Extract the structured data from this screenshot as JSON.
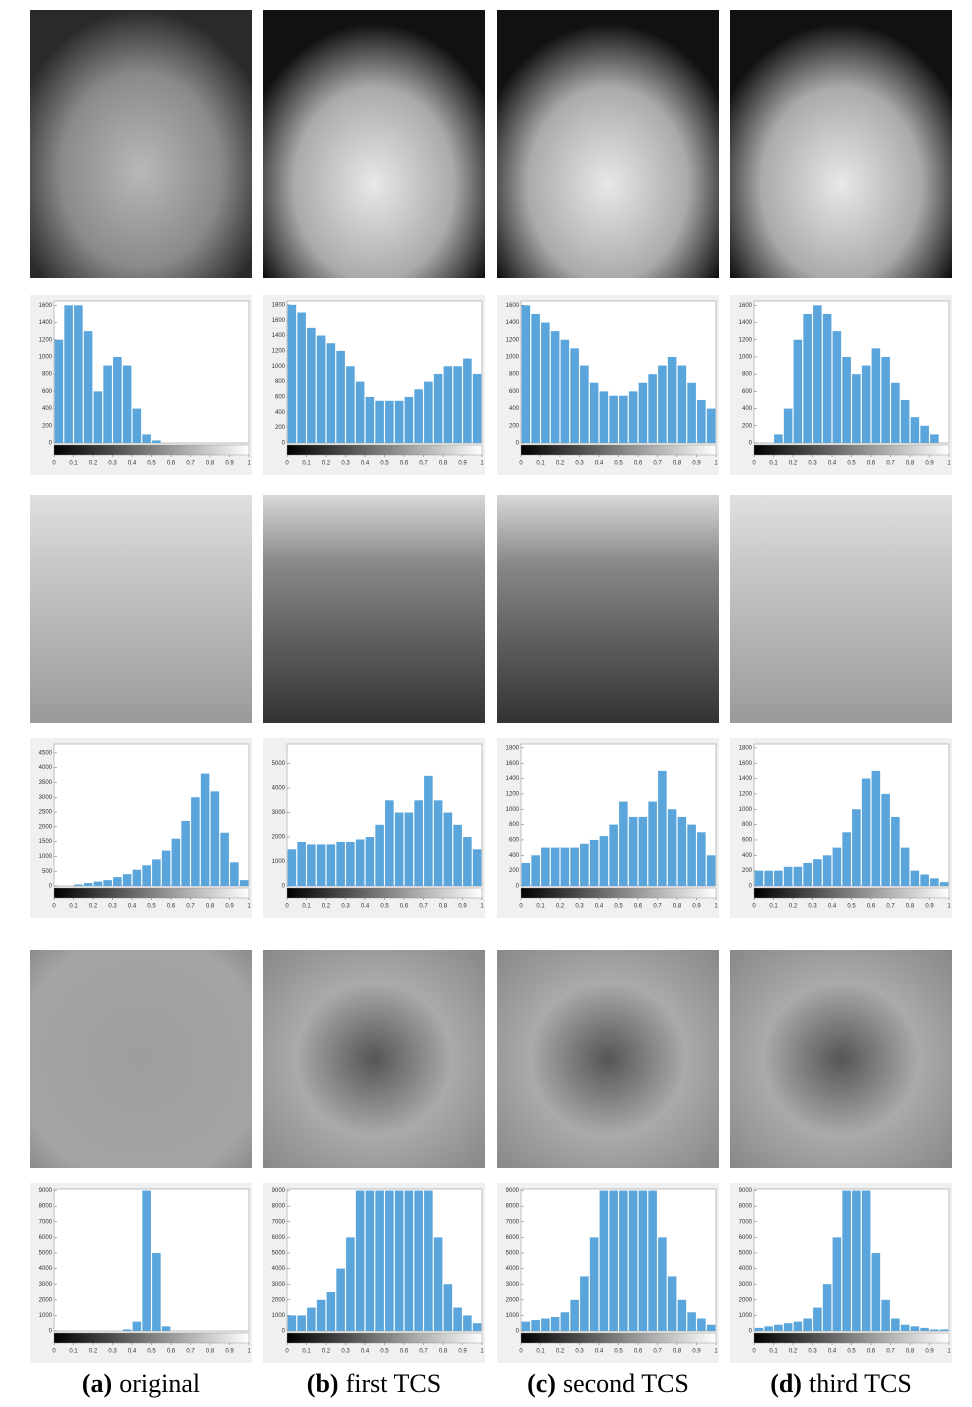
{
  "captions": [
    {
      "label": "(a)",
      "text": "original"
    },
    {
      "label": "(b)",
      "text": "first TCS"
    },
    {
      "label": "(c)",
      "text": "second TCS"
    },
    {
      "label": "(d)",
      "text": "third TCS"
    }
  ],
  "chart_data": [
    {
      "type": "histogram",
      "color": "#5aa6dc",
      "bins": [
        0,
        0.05,
        0.1,
        0.15,
        0.2,
        0.25,
        0.3,
        0.35,
        0.4,
        0.45,
        0.5,
        0.55,
        0.6,
        0.65,
        0.7,
        0.75,
        0.8,
        0.85,
        0.9,
        0.95,
        1
      ],
      "values": [
        1200,
        1600,
        1600,
        1300,
        600,
        900,
        1000,
        900,
        400,
        100,
        30,
        0,
        0,
        0,
        0,
        0,
        0,
        0,
        0,
        0
      ],
      "xlim": [
        0,
        1
      ],
      "xticks": [
        0,
        0.1,
        0.2,
        0.3,
        0.4,
        0.5,
        0.6,
        0.7,
        0.8,
        0.9,
        1
      ],
      "ylim": [
        0,
        1650
      ],
      "yticks": [
        0,
        200,
        400,
        600,
        800,
        1000,
        1200,
        1400,
        1600
      ]
    },
    {
      "type": "histogram",
      "color": "#5aa6dc",
      "bins": [
        0,
        0.05,
        0.1,
        0.15,
        0.2,
        0.25,
        0.3,
        0.35,
        0.4,
        0.45,
        0.5,
        0.55,
        0.6,
        0.65,
        0.7,
        0.75,
        0.8,
        0.85,
        0.9,
        0.95,
        1
      ],
      "values": [
        1800,
        1700,
        1500,
        1400,
        1300,
        1200,
        1000,
        800,
        600,
        550,
        550,
        550,
        600,
        700,
        800,
        900,
        1000,
        1000,
        1100,
        900
      ],
      "xlim": [
        0,
        1
      ],
      "xticks": [
        0,
        0.1,
        0.2,
        0.3,
        0.4,
        0.5,
        0.6,
        0.7,
        0.8,
        0.9,
        1
      ],
      "ylim": [
        0,
        1850
      ],
      "yticks": [
        0,
        200,
        400,
        600,
        800,
        1000,
        1200,
        1400,
        1600,
        1800
      ]
    },
    {
      "type": "histogram",
      "color": "#5aa6dc",
      "bins": [
        0,
        0.05,
        0.1,
        0.15,
        0.2,
        0.25,
        0.3,
        0.35,
        0.4,
        0.45,
        0.5,
        0.55,
        0.6,
        0.65,
        0.7,
        0.75,
        0.8,
        0.85,
        0.9,
        0.95,
        1
      ],
      "values": [
        1600,
        1500,
        1400,
        1300,
        1200,
        1100,
        900,
        700,
        600,
        550,
        550,
        600,
        700,
        800,
        900,
        1000,
        900,
        700,
        500,
        400
      ],
      "xlim": [
        0,
        1
      ],
      "xticks": [
        0,
        0.1,
        0.2,
        0.3,
        0.4,
        0.5,
        0.6,
        0.7,
        0.8,
        0.9,
        1
      ],
      "ylim": [
        0,
        1650
      ],
      "yticks": [
        0,
        200,
        400,
        600,
        800,
        1000,
        1200,
        1400,
        1600
      ]
    },
    {
      "type": "histogram",
      "color": "#5aa6dc",
      "bins": [
        0,
        0.05,
        0.1,
        0.15,
        0.2,
        0.25,
        0.3,
        0.35,
        0.4,
        0.45,
        0.5,
        0.55,
        0.6,
        0.65,
        0.7,
        0.75,
        0.8,
        0.85,
        0.9,
        0.95,
        1
      ],
      "values": [
        0,
        0,
        100,
        400,
        1200,
        1500,
        1600,
        1500,
        1300,
        1000,
        800,
        900,
        1100,
        1000,
        700,
        500,
        300,
        200,
        100,
        0
      ],
      "xlim": [
        0,
        1
      ],
      "xticks": [
        0,
        0.1,
        0.2,
        0.3,
        0.4,
        0.5,
        0.6,
        0.7,
        0.8,
        0.9,
        1
      ],
      "ylim": [
        0,
        1650
      ],
      "yticks": [
        0,
        200,
        400,
        600,
        800,
        1000,
        1200,
        1400,
        1600
      ]
    },
    {
      "type": "histogram",
      "color": "#5aa6dc",
      "bins": [
        0,
        0.05,
        0.1,
        0.15,
        0.2,
        0.25,
        0.3,
        0.35,
        0.4,
        0.45,
        0.5,
        0.55,
        0.6,
        0.65,
        0.7,
        0.75,
        0.8,
        0.85,
        0.9,
        0.95,
        1
      ],
      "values": [
        0,
        0,
        50,
        100,
        150,
        200,
        300,
        400,
        550,
        700,
        900,
        1200,
        1600,
        2200,
        3000,
        3800,
        3200,
        1800,
        800,
        200
      ],
      "xlim": [
        0,
        1
      ],
      "xticks": [
        0,
        0.1,
        0.2,
        0.3,
        0.4,
        0.5,
        0.6,
        0.7,
        0.8,
        0.9,
        1
      ],
      "ylim": [
        0,
        4800
      ],
      "yticks": [
        0,
        500,
        1000,
        1500,
        2000,
        2500,
        3000,
        3500,
        4000,
        4500
      ]
    },
    {
      "type": "histogram",
      "color": "#5aa6dc",
      "bins": [
        0,
        0.05,
        0.1,
        0.15,
        0.2,
        0.25,
        0.3,
        0.35,
        0.4,
        0.45,
        0.5,
        0.55,
        0.6,
        0.65,
        0.7,
        0.75,
        0.8,
        0.85,
        0.9,
        0.95,
        1
      ],
      "values": [
        1500,
        1800,
        1700,
        1700,
        1700,
        1800,
        1800,
        1900,
        2000,
        2500,
        3500,
        3000,
        3000,
        3500,
        4500,
        3500,
        3000,
        2500,
        2000,
        1500
      ],
      "xlim": [
        0,
        1
      ],
      "xticks": [
        0,
        0.1,
        0.2,
        0.3,
        0.4,
        0.5,
        0.6,
        0.7,
        0.8,
        0.9,
        1
      ],
      "ylim": [
        0,
        5800
      ],
      "yticks": [
        0,
        1000,
        2000,
        3000,
        4000,
        5000
      ]
    },
    {
      "type": "histogram",
      "color": "#5aa6dc",
      "bins": [
        0,
        0.05,
        0.1,
        0.15,
        0.2,
        0.25,
        0.3,
        0.35,
        0.4,
        0.45,
        0.5,
        0.55,
        0.6,
        0.65,
        0.7,
        0.75,
        0.8,
        0.85,
        0.9,
        0.95,
        1
      ],
      "values": [
        300,
        400,
        500,
        500,
        500,
        500,
        550,
        600,
        650,
        800,
        1100,
        900,
        900,
        1100,
        1500,
        1000,
        900,
        800,
        700,
        400
      ],
      "xlim": [
        0,
        1
      ],
      "xticks": [
        0,
        0.1,
        0.2,
        0.3,
        0.4,
        0.5,
        0.6,
        0.7,
        0.8,
        0.9,
        1
      ],
      "ylim": [
        0,
        1850
      ],
      "yticks": [
        0,
        200,
        400,
        600,
        800,
        1000,
        1200,
        1400,
        1600,
        1800
      ]
    },
    {
      "type": "histogram",
      "color": "#5aa6dc",
      "bins": [
        0,
        0.05,
        0.1,
        0.15,
        0.2,
        0.25,
        0.3,
        0.35,
        0.4,
        0.45,
        0.5,
        0.55,
        0.6,
        0.65,
        0.7,
        0.75,
        0.8,
        0.85,
        0.9,
        0.95,
        1
      ],
      "values": [
        200,
        200,
        200,
        250,
        250,
        300,
        350,
        400,
        500,
        700,
        1000,
        1400,
        1500,
        1200,
        900,
        500,
        200,
        150,
        100,
        50
      ],
      "xlim": [
        0,
        1
      ],
      "xticks": [
        0,
        0.1,
        0.2,
        0.3,
        0.4,
        0.5,
        0.6,
        0.7,
        0.8,
        0.9,
        1
      ],
      "ylim": [
        0,
        1850
      ],
      "yticks": [
        0,
        200,
        400,
        600,
        800,
        1000,
        1200,
        1400,
        1600,
        1800
      ]
    },
    {
      "type": "histogram",
      "color": "#5aa6dc",
      "bins": [
        0,
        0.05,
        0.1,
        0.15,
        0.2,
        0.25,
        0.3,
        0.35,
        0.4,
        0.45,
        0.5,
        0.55,
        0.6,
        0.65,
        0.7,
        0.75,
        0.8,
        0.85,
        0.9,
        0.95,
        1
      ],
      "values": [
        0,
        0,
        0,
        0,
        0,
        0,
        0,
        100,
        600,
        9000,
        5000,
        300,
        0,
        0,
        0,
        0,
        0,
        0,
        0,
        0
      ],
      "xlim": [
        0,
        1
      ],
      "xticks": [
        0,
        0.1,
        0.2,
        0.3,
        0.4,
        0.5,
        0.6,
        0.7,
        0.8,
        0.9,
        1
      ],
      "ylim": [
        0,
        9100
      ],
      "yticks": [
        0,
        1000,
        2000,
        3000,
        4000,
        5000,
        6000,
        7000,
        8000,
        9000
      ]
    },
    {
      "type": "histogram",
      "color": "#5aa6dc",
      "bins": [
        0,
        0.05,
        0.1,
        0.15,
        0.2,
        0.25,
        0.3,
        0.35,
        0.4,
        0.45,
        0.5,
        0.55,
        0.6,
        0.65,
        0.7,
        0.75,
        0.8,
        0.85,
        0.9,
        0.95,
        1
      ],
      "values": [
        1000,
        1000,
        1500,
        2000,
        2500,
        4000,
        6000,
        9000,
        9000,
        9000,
        9000,
        9000,
        9000,
        9000,
        9000,
        6000,
        3000,
        1500,
        1000,
        500
      ],
      "xlim": [
        0,
        1
      ],
      "xticks": [
        0,
        0.1,
        0.2,
        0.3,
        0.4,
        0.5,
        0.6,
        0.7,
        0.8,
        0.9,
        1
      ],
      "ylim": [
        0,
        9100
      ],
      "yticks": [
        0,
        1000,
        2000,
        3000,
        4000,
        5000,
        6000,
        7000,
        8000,
        9000
      ]
    },
    {
      "type": "histogram",
      "color": "#5aa6dc",
      "bins": [
        0,
        0.05,
        0.1,
        0.15,
        0.2,
        0.25,
        0.3,
        0.35,
        0.4,
        0.45,
        0.5,
        0.55,
        0.6,
        0.65,
        0.7,
        0.75,
        0.8,
        0.85,
        0.9,
        0.95,
        1
      ],
      "values": [
        600,
        700,
        800,
        900,
        1200,
        2000,
        3500,
        6000,
        9000,
        9000,
        9000,
        9000,
        9000,
        9000,
        6000,
        3500,
        2000,
        1200,
        800,
        400
      ],
      "xlim": [
        0,
        1
      ],
      "xticks": [
        0,
        0.1,
        0.2,
        0.3,
        0.4,
        0.5,
        0.6,
        0.7,
        0.8,
        0.9,
        1
      ],
      "ylim": [
        0,
        9100
      ],
      "yticks": [
        0,
        1000,
        2000,
        3000,
        4000,
        5000,
        6000,
        7000,
        8000,
        9000
      ]
    },
    {
      "type": "histogram",
      "color": "#5aa6dc",
      "bins": [
        0,
        0.05,
        0.1,
        0.15,
        0.2,
        0.25,
        0.3,
        0.35,
        0.4,
        0.45,
        0.5,
        0.55,
        0.6,
        0.65,
        0.7,
        0.75,
        0.8,
        0.85,
        0.9,
        0.95,
        1
      ],
      "values": [
        200,
        300,
        400,
        500,
        600,
        800,
        1500,
        3000,
        6000,
        9000,
        9000,
        9000,
        5000,
        2000,
        800,
        400,
        300,
        200,
        100,
        100
      ],
      "xlim": [
        0,
        1
      ],
      "xticks": [
        0,
        0.1,
        0.2,
        0.3,
        0.4,
        0.5,
        0.6,
        0.7,
        0.8,
        0.9,
        1
      ],
      "ylim": [
        0,
        9100
      ],
      "yticks": [
        0,
        1000,
        2000,
        3000,
        4000,
        5000,
        6000,
        7000,
        8000,
        9000
      ]
    }
  ]
}
